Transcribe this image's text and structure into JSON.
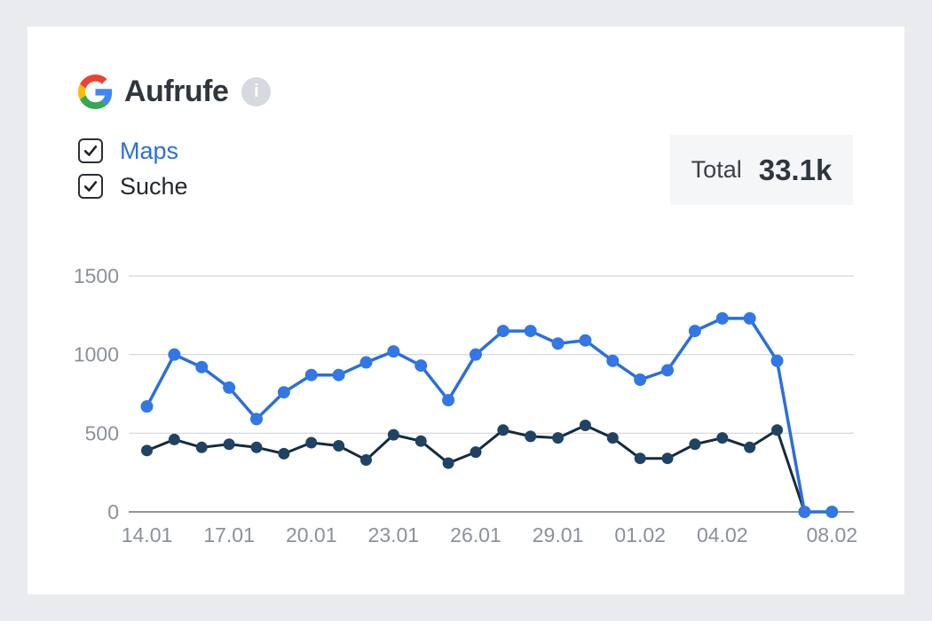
{
  "header": {
    "title": "Aufrufe",
    "provider_icon": "google-g-logo",
    "info_glyph": "i"
  },
  "legend": {
    "items": [
      {
        "label": "Maps",
        "checked": true,
        "color": "#2a6fdb"
      },
      {
        "label": "Suche",
        "checked": true,
        "color": "#23282e"
      }
    ]
  },
  "summary": {
    "label": "Total",
    "value": "33.1k"
  },
  "chart_data": {
    "type": "line",
    "title": "Aufrufe",
    "x": [
      "14.01",
      "15.01",
      "16.01",
      "17.01",
      "18.01",
      "19.01",
      "20.01",
      "21.01",
      "22.01",
      "23.01",
      "24.01",
      "25.01",
      "26.01",
      "27.01",
      "28.01",
      "29.01",
      "30.01",
      "31.01",
      "01.02",
      "02.02",
      "03.02",
      "04.02",
      "05.02",
      "06.02",
      "07.02",
      "08.02"
    ],
    "series": [
      {
        "name": "Maps",
        "line_color": "#2b6fd9",
        "point_color": "#3377e5",
        "line_width": 3.5,
        "point_radius": 7,
        "values": [
          670,
          1000,
          920,
          790,
          590,
          760,
          870,
          870,
          950,
          1020,
          930,
          710,
          1000,
          1150,
          1150,
          1070,
          1090,
          960,
          840,
          900,
          1150,
          1230,
          1230,
          960,
          0,
          0
        ]
      },
      {
        "name": "Suche",
        "line_color": "#142c40",
        "point_color": "#204364",
        "line_width": 3,
        "point_radius": 6.5,
        "values": [
          390,
          460,
          410,
          430,
          410,
          370,
          440,
          420,
          330,
          490,
          450,
          310,
          380,
          520,
          480,
          470,
          550,
          470,
          340,
          340,
          430,
          470,
          410,
          520,
          0,
          0
        ]
      }
    ],
    "y_ticks": [
      0,
      500,
      1000,
      1500
    ],
    "ylim": [
      0,
      1500
    ],
    "x_tick_labels": [
      {
        "label": "14.01",
        "index": 0
      },
      {
        "label": "17.01",
        "index": 3
      },
      {
        "label": "20.01",
        "index": 6
      },
      {
        "label": "23.01",
        "index": 9
      },
      {
        "label": "26.01",
        "index": 12
      },
      {
        "label": "29.01",
        "index": 15
      },
      {
        "label": "01.02",
        "index": 18
      },
      {
        "label": "04.02",
        "index": 21
      },
      {
        "label": "08.02",
        "index": 25
      }
    ],
    "grid": "horizontal",
    "legend_position": "top-left",
    "grid_color": "#d3d6da",
    "axis_color": "#6e747b",
    "tick_text_color": "#8b9199"
  }
}
